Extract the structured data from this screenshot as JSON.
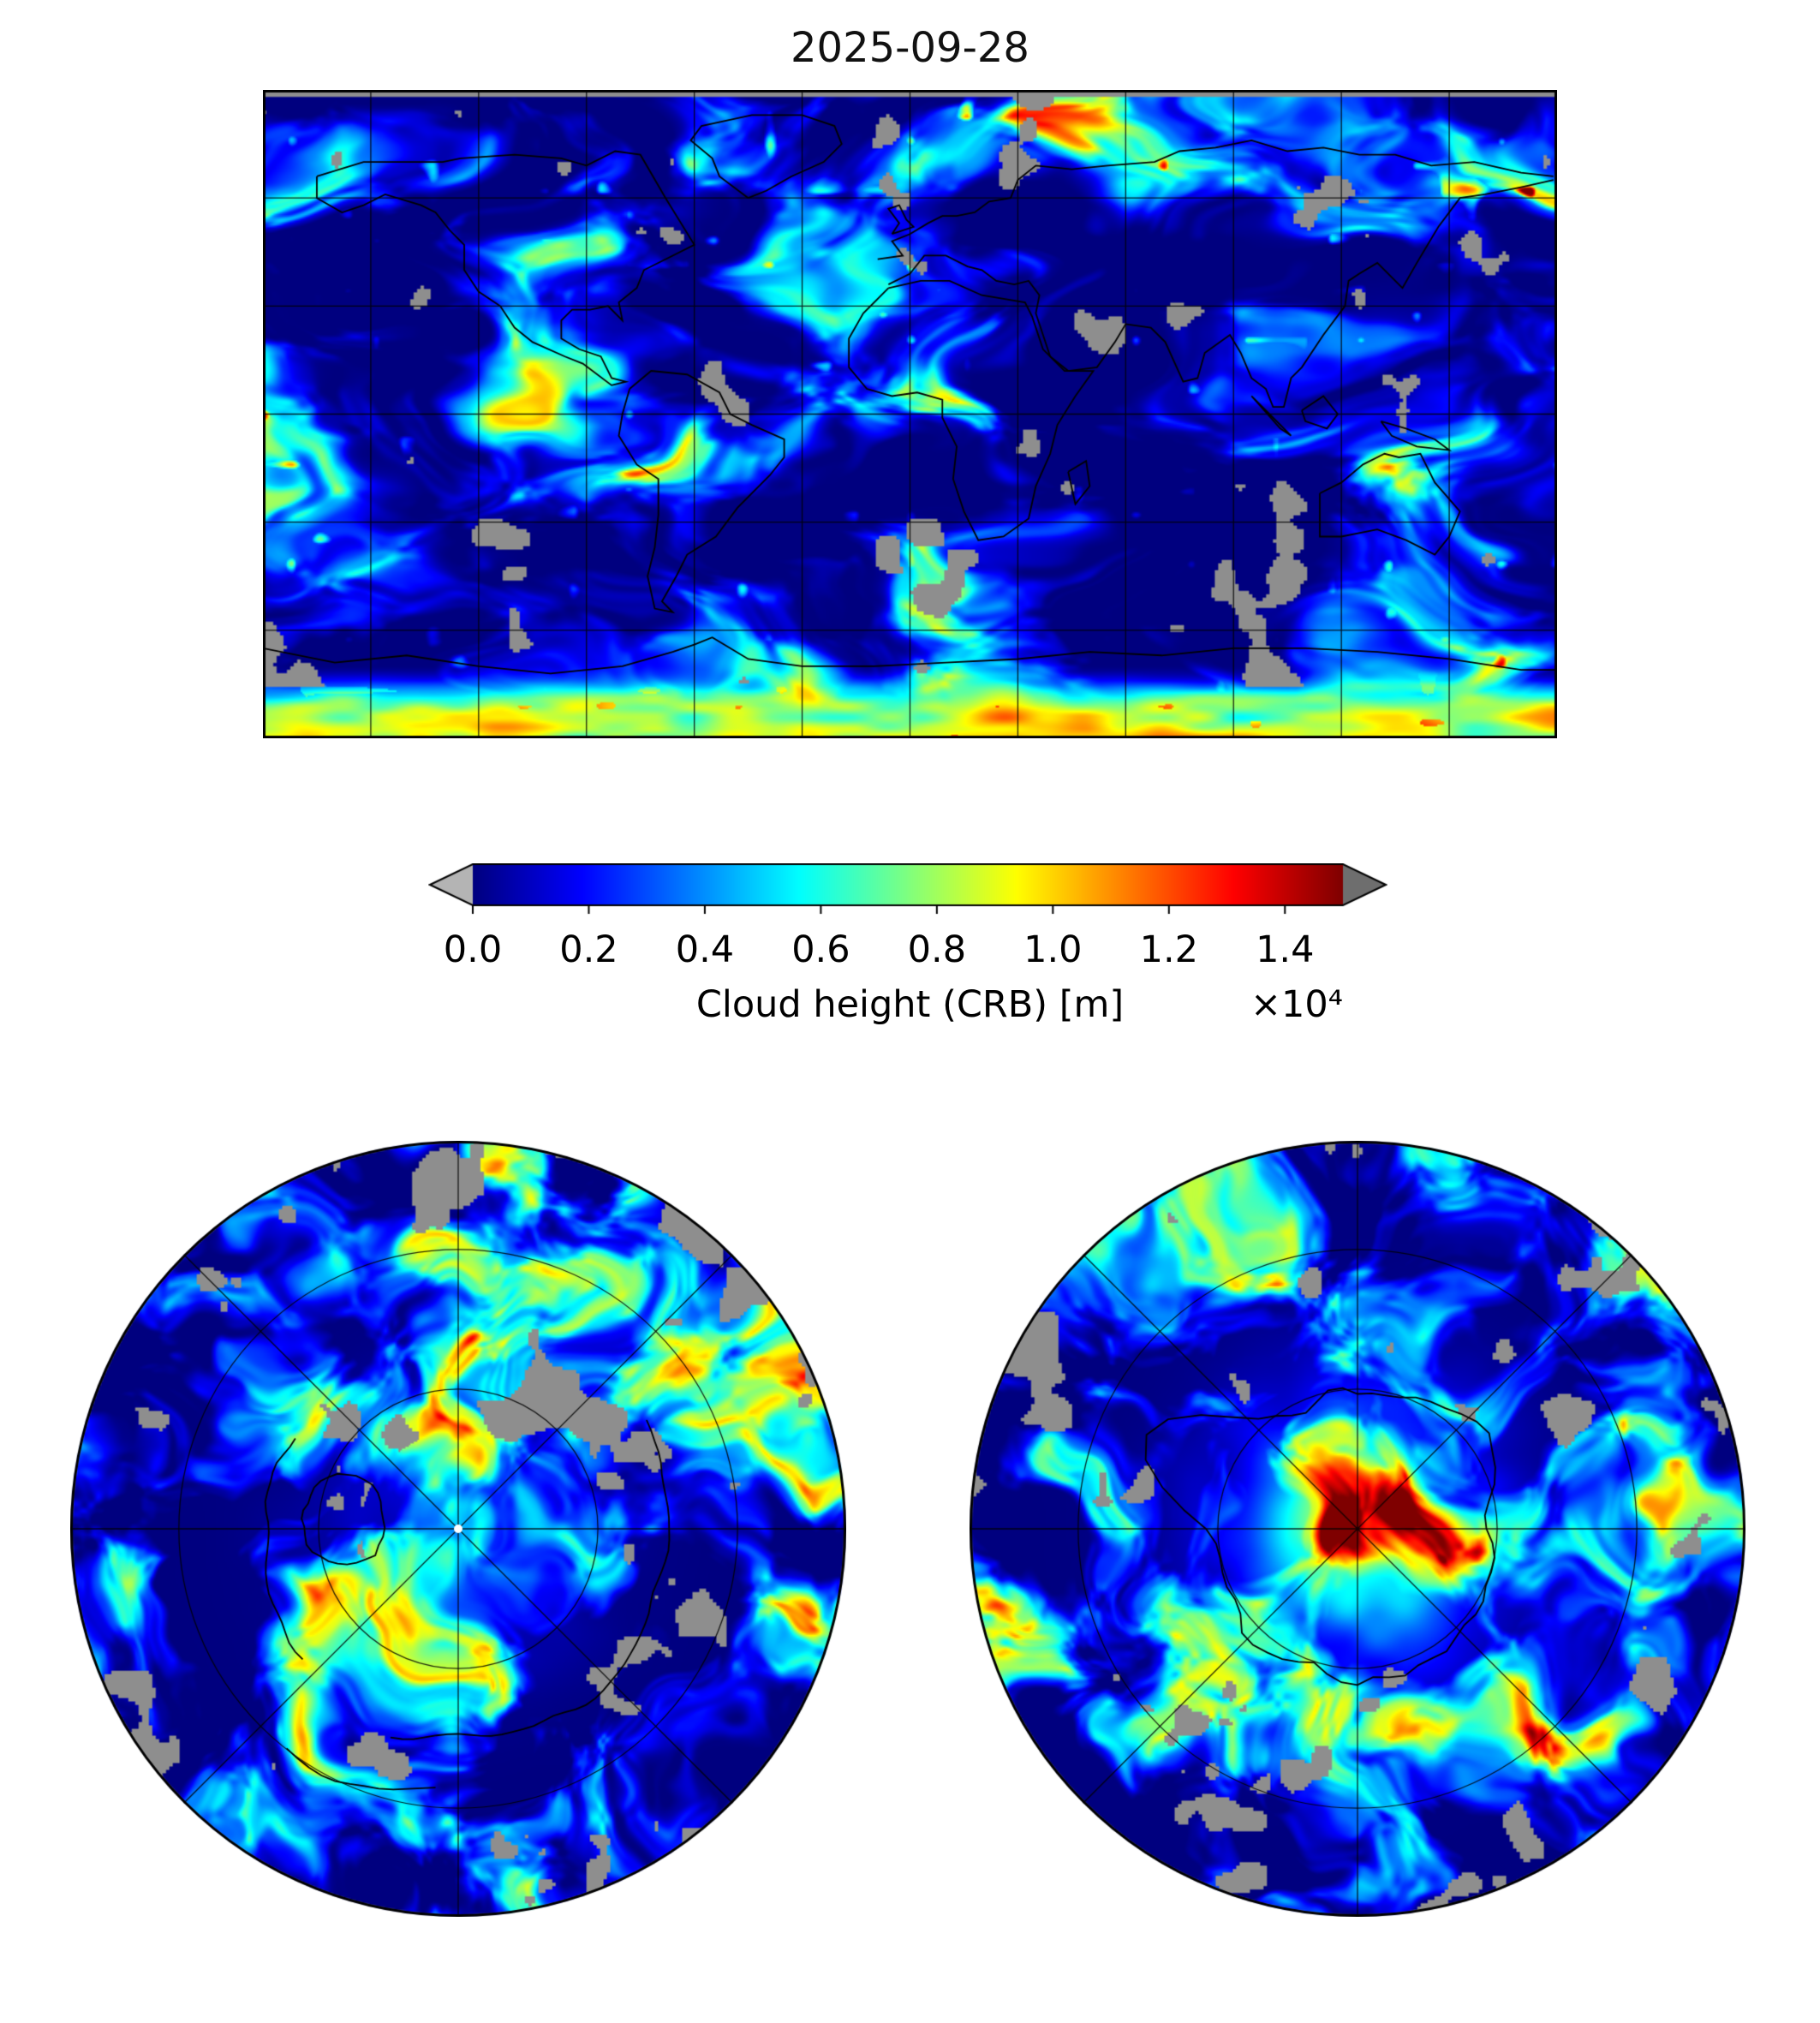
{
  "chart_data": {
    "type": "heatmap",
    "title": "2025-09-28",
    "variable": "Cloud height (CRB)",
    "units": "m",
    "colormap": "jet",
    "missing_data_color": "#8e8e8e",
    "colorbar": {
      "orientation": "horizontal",
      "label": "Cloud height (CRB) [m]",
      "multiplier_label": "×10⁴",
      "ticks": [
        "0.0",
        "0.2",
        "0.4",
        "0.6",
        "0.8",
        "1.0",
        "1.2",
        "1.4"
      ],
      "tick_values": [
        0,
        2000,
        4000,
        6000,
        8000,
        10000,
        12000,
        14000
      ],
      "range": [
        0,
        15000
      ],
      "extend": "both",
      "under_color": "#b4b4b4",
      "over_color": "#6e6e6e"
    },
    "panels": [
      {
        "id": "global",
        "projection": "equirectangular",
        "extent": "global",
        "gridlines": {
          "lon_step_deg": 30,
          "lat_step_deg": 30
        },
        "coastlines": true
      },
      {
        "id": "north-polar",
        "projection": "north-polar-stereographic",
        "gridlines": {
          "rings": 2,
          "spokes": 8
        },
        "coastlines": true
      },
      {
        "id": "south-polar",
        "projection": "south-polar-stereographic",
        "gridlines": {
          "rings": 2,
          "spokes": 8
        },
        "coastlines": true
      }
    ]
  }
}
